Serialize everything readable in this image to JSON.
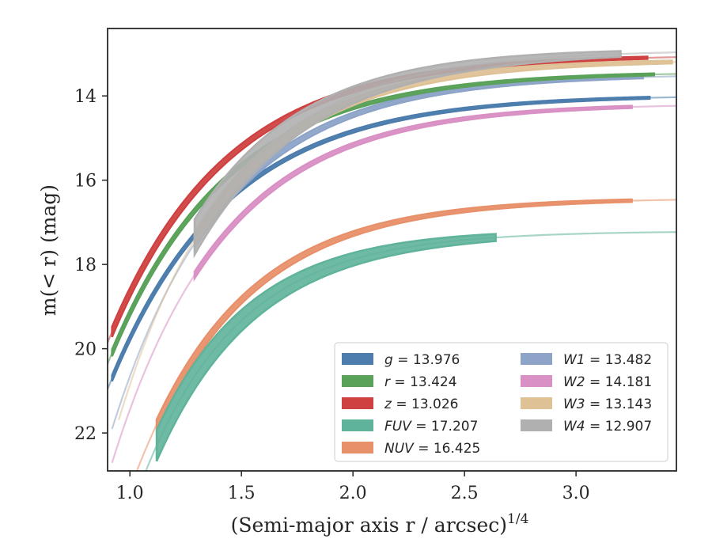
{
  "chart_data": {
    "type": "line",
    "xlabel": "(Semi-major axis r / arcsec)",
    "xlabel_exponent": "1/4",
    "ylabel": "m(< r) (mag)",
    "xlim": [
      0.9,
      3.45
    ],
    "ylim": [
      22.9,
      12.4
    ],
    "y_inverted": true,
    "x_ticks": [
      1.0,
      1.5,
      2.0,
      2.5,
      3.0
    ],
    "x_tick_labels": [
      "1.0",
      "1.5",
      "2.0",
      "2.5",
      "3.0"
    ],
    "y_ticks": [
      14,
      16,
      18,
      20,
      22
    ],
    "y_tick_labels": [
      "14",
      "16",
      "18",
      "20",
      "22"
    ],
    "grid": false,
    "legend_position": "lower-right",
    "series": [
      {
        "name": "g = 13.976",
        "label_var": "g",
        "label_val": "13.976",
        "color": "#4c7dac",
        "asymptote": 13.976,
        "r0": 0.92,
        "m0": 20.7,
        "k": 1.9,
        "x_data_end": 3.33,
        "x_start": 0.9,
        "ext_end": 3.45,
        "band": 0.05
      },
      {
        "name": "r = 13.424",
        "label_var": "r",
        "label_val": "13.424",
        "color": "#5aa15a",
        "asymptote": 13.424,
        "r0": 0.92,
        "m0": 20.1,
        "k": 1.9,
        "x_data_end": 3.35,
        "x_start": 0.9,
        "ext_end": 3.45,
        "band": 0.06
      },
      {
        "name": "z = 13.026",
        "label_var": "z",
        "label_val": "13.026",
        "color": "#cf4141",
        "asymptote": 13.026,
        "r0": 0.92,
        "m0": 19.6,
        "k": 1.9,
        "x_data_end": 3.32,
        "x_start": 0.9,
        "ext_end": 3.45,
        "band": 0.1
      },
      {
        "name": "FUV = 17.207",
        "label_var": "FUV",
        "label_val": "17.207",
        "color": "#5fb39a",
        "asymptote": 17.207,
        "r0": 1.12,
        "m0": 22.3,
        "k": 2.3,
        "x_data_end": 2.64,
        "x_start": 0.95,
        "ext_end": 3.45,
        "band": 0.35
      },
      {
        "name": "NUV = 16.425",
        "label_var": "NUV",
        "label_val": "16.425",
        "color": "#e8906a",
        "asymptote": 16.425,
        "r0": 1.12,
        "m0": 21.8,
        "k": 2.1,
        "x_data_end": 3.25,
        "x_start": 0.97,
        "ext_end": 3.45,
        "band": 0.1
      },
      {
        "name": "W1 = 13.482",
        "label_var": "W1",
        "label_val": "13.482",
        "color": "#8da4c8",
        "asymptote": 13.482,
        "r0": 1.29,
        "m0": 17.5,
        "k": 2.0,
        "x_data_end": 3.3,
        "x_start": 0.92,
        "ext_end": 3.45,
        "band": 0.08
      },
      {
        "name": "W2 = 14.181",
        "label_var": "W2",
        "label_val": "14.181",
        "color": "#d990c4",
        "asymptote": 14.181,
        "r0": 1.29,
        "m0": 18.25,
        "k": 2.0,
        "x_data_end": 3.25,
        "x_start": 0.92,
        "ext_end": 3.45,
        "band": 0.06
      },
      {
        "name": "W3 = 13.143",
        "label_var": "W3",
        "label_val": "13.143",
        "color": "#dfc196",
        "asymptote": 13.143,
        "r0": 1.29,
        "m0": 17.4,
        "k": 2.05,
        "x_data_end": 3.43,
        "x_start": 0.95,
        "ext_end": 3.45,
        "band": 0.15
      },
      {
        "name": "W4 = 12.907",
        "label_var": "W4",
        "label_val": "12.907",
        "color": "#b0b0b0",
        "asymptote": 12.907,
        "r0": 1.29,
        "m0": 17.35,
        "k": 2.0,
        "x_data_end": 3.2,
        "x_start": 1.29,
        "ext_end": 3.45,
        "band": 0.4
      }
    ]
  }
}
